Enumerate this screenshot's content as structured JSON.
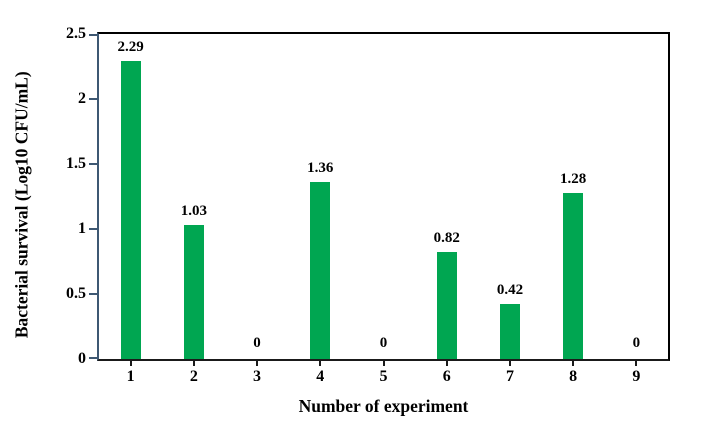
{
  "chart_data": {
    "type": "bar",
    "title": "",
    "categories": [
      "1",
      "2",
      "3",
      "4",
      "5",
      "6",
      "7",
      "8",
      "9"
    ],
    "values": [
      2.29,
      1.03,
      0,
      1.36,
      0,
      0.82,
      0.42,
      1.28,
      0
    ],
    "value_labels": [
      "2.29",
      "1.03",
      "0",
      "1.36",
      "0",
      "0.82",
      "0.42",
      "1.28",
      "0"
    ],
    "xlabel": "Number of experiment",
    "ylabel": "Bacterial survival (Log10 CFU/mL)",
    "ylim": [
      0,
      2.5
    ],
    "yticks": [
      0,
      0.5,
      1,
      1.5,
      2,
      2.5
    ],
    "ytick_labels": [
      "0",
      "0.5",
      "1",
      "1.5",
      "2",
      "2.5"
    ],
    "grid": false,
    "legend": "none",
    "colors": {
      "bar": "#00A651",
      "y_axis": "#3E5873",
      "frame": "#000000",
      "text": "#000000"
    }
  }
}
